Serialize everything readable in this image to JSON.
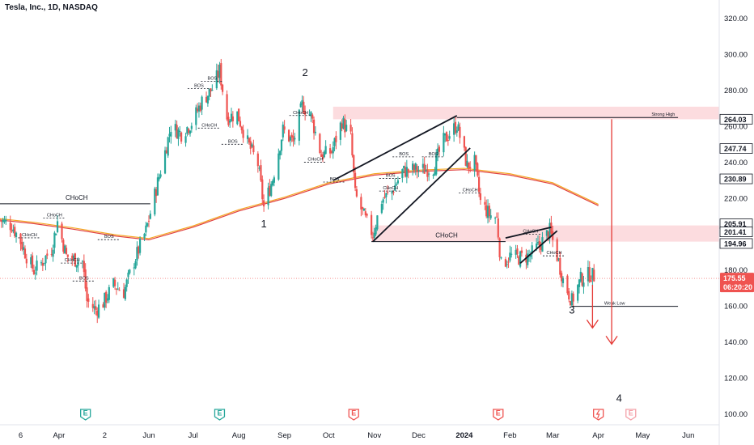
{
  "header": {
    "title": "Tesla, Inc., 1D, NASDAQ"
  },
  "colors": {
    "up": "#26a69a",
    "down": "#ef5350",
    "ma_orange": "#f5a623",
    "ma_red": "#e04040",
    "zone": "#fbd0d4",
    "arrow": "#e53935",
    "price_badge": "#ef5350"
  },
  "chart_data": {
    "type": "candlestick",
    "title": "Tesla, Inc., 1D, NASDAQ",
    "ylim": [
      96,
      324
    ],
    "y_ticks": [
      100,
      120,
      140,
      160,
      180,
      200,
      220,
      240,
      260,
      280,
      300,
      320
    ],
    "y_tick_labels": [
      "100.00",
      "120.00",
      "140.00",
      "160.00",
      "180.00",
      "200.00",
      "220.00",
      "240.00",
      "260.00",
      "280.00",
      "300.00",
      "320.00"
    ],
    "x_ticks": [
      {
        "label": "6",
        "date": "2023-03-06"
      },
      {
        "label": "Apr",
        "date": "2023-04-01"
      },
      {
        "label": "2",
        "date": "2023-05-02"
      },
      {
        "label": "Jun",
        "date": "2023-06-01"
      },
      {
        "label": "Jul",
        "date": "2023-07-01"
      },
      {
        "label": "Aug",
        "date": "2023-08-01"
      },
      {
        "label": "Sep",
        "date": "2023-09-01"
      },
      {
        "label": "Oct",
        "date": "2023-10-01"
      },
      {
        "label": "Nov",
        "date": "2023-11-01"
      },
      {
        "label": "Dec",
        "date": "2023-12-01"
      },
      {
        "label": "2024",
        "date": "2024-01-01",
        "bold": true
      },
      {
        "label": "Feb",
        "date": "2024-02-01"
      },
      {
        "label": "Mar",
        "date": "2024-03-01"
      },
      {
        "label": "Apr",
        "date": "2024-04-01"
      },
      {
        "label": "May",
        "date": "2024-05-01"
      },
      {
        "label": "Jun",
        "date": "2024-06-01"
      }
    ],
    "price_series_close": [
      {
        "date": "2023-02-20",
        "price": 208
      },
      {
        "date": "2023-02-28",
        "price": 205
      },
      {
        "date": "2023-03-06",
        "price": 196
      },
      {
        "date": "2023-03-10",
        "price": 188
      },
      {
        "date": "2023-03-15",
        "price": 180
      },
      {
        "date": "2023-03-20",
        "price": 184
      },
      {
        "date": "2023-03-27",
        "price": 192
      },
      {
        "date": "2023-03-31",
        "price": 207
      },
      {
        "date": "2023-04-06",
        "price": 188
      },
      {
        "date": "2023-04-12",
        "price": 186
      },
      {
        "date": "2023-04-17",
        "price": 185
      },
      {
        "date": "2023-04-20",
        "price": 163
      },
      {
        "date": "2023-04-26",
        "price": 158
      },
      {
        "date": "2023-05-01",
        "price": 162
      },
      {
        "date": "2023-05-08",
        "price": 172
      },
      {
        "date": "2023-05-15",
        "price": 168
      },
      {
        "date": "2023-05-22",
        "price": 185
      },
      {
        "date": "2023-05-30",
        "price": 202
      },
      {
        "date": "2023-06-05",
        "price": 222
      },
      {
        "date": "2023-06-12",
        "price": 246
      },
      {
        "date": "2023-06-16",
        "price": 260
      },
      {
        "date": "2023-06-23",
        "price": 256
      },
      {
        "date": "2023-06-30",
        "price": 262
      },
      {
        "date": "2023-07-07",
        "price": 274
      },
      {
        "date": "2023-07-14",
        "price": 281
      },
      {
        "date": "2023-07-19",
        "price": 291
      },
      {
        "date": "2023-07-24",
        "price": 265
      },
      {
        "date": "2023-07-31",
        "price": 267
      },
      {
        "date": "2023-08-07",
        "price": 251
      },
      {
        "date": "2023-08-14",
        "price": 239
      },
      {
        "date": "2023-08-18",
        "price": 215
      },
      {
        "date": "2023-08-24",
        "price": 231
      },
      {
        "date": "2023-08-31",
        "price": 258
      },
      {
        "date": "2023-09-07",
        "price": 251
      },
      {
        "date": "2023-09-13",
        "price": 272
      },
      {
        "date": "2023-09-19",
        "price": 266
      },
      {
        "date": "2023-09-26",
        "price": 244
      },
      {
        "date": "2023-10-03",
        "price": 246
      },
      {
        "date": "2023-10-10",
        "price": 263
      },
      {
        "date": "2023-10-16",
        "price": 254
      },
      {
        "date": "2023-10-19",
        "price": 222
      },
      {
        "date": "2023-10-26",
        "price": 208
      },
      {
        "date": "2023-10-31",
        "price": 200
      },
      {
        "date": "2023-11-06",
        "price": 219
      },
      {
        "date": "2023-11-13",
        "price": 224
      },
      {
        "date": "2023-11-20",
        "price": 235
      },
      {
        "date": "2023-11-27",
        "price": 236
      },
      {
        "date": "2023-12-04",
        "price": 236
      },
      {
        "date": "2023-12-11",
        "price": 237
      },
      {
        "date": "2023-12-18",
        "price": 252
      },
      {
        "date": "2023-12-27",
        "price": 261
      },
      {
        "date": "2024-01-03",
        "price": 238
      },
      {
        "date": "2024-01-08",
        "price": 240
      },
      {
        "date": "2024-01-12",
        "price": 218
      },
      {
        "date": "2024-01-18",
        "price": 211
      },
      {
        "date": "2024-01-23",
        "price": 209
      },
      {
        "date": "2024-01-26",
        "price": 183
      },
      {
        "date": "2024-02-01",
        "price": 188
      },
      {
        "date": "2024-02-07",
        "price": 187
      },
      {
        "date": "2024-02-14",
        "price": 188
      },
      {
        "date": "2024-02-21",
        "price": 194
      },
      {
        "date": "2024-02-28",
        "price": 202
      },
      {
        "date": "2024-03-04",
        "price": 188
      },
      {
        "date": "2024-03-08",
        "price": 175
      },
      {
        "date": "2024-03-14",
        "price": 163
      },
      {
        "date": "2024-03-20",
        "price": 175
      },
      {
        "date": "2024-03-26",
        "price": 178
      },
      {
        "date": "2024-04-01",
        "price": 175.55
      }
    ],
    "moving_averages": [
      {
        "name": "",
        "points": [
          {
            "date": "2023-02-20",
            "price": 208
          },
          {
            "date": "2023-03-15",
            "price": 206
          },
          {
            "date": "2023-04-10",
            "price": 203
          },
          {
            "date": "2023-05-10",
            "price": 199
          },
          {
            "date": "2023-06-01",
            "price": 197
          },
          {
            "date": "2023-07-01",
            "price": 204
          },
          {
            "date": "2023-08-01",
            "price": 213
          },
          {
            "date": "2023-09-01",
            "price": 220
          },
          {
            "date": "2023-10-01",
            "price": 228
          },
          {
            "date": "2023-11-01",
            "price": 233
          },
          {
            "date": "2023-12-01",
            "price": 235
          },
          {
            "date": "2024-01-01",
            "price": 236
          },
          {
            "date": "2024-02-01",
            "price": 233
          },
          {
            "date": "2024-03-01",
            "price": 228
          },
          {
            "date": "2024-04-01",
            "price": 216
          }
        ]
      }
    ],
    "price_labels": [
      {
        "label": "264.03",
        "price": 264.03,
        "color": "#131722"
      },
      {
        "label": "247.74",
        "price": 247.74,
        "color": "#131722"
      },
      {
        "label": "230.89",
        "price": 230.89,
        "color": "#131722"
      },
      {
        "label": "205.91",
        "price": 205.91,
        "color": "#131722"
      },
      {
        "label": "201.41",
        "price": 201.41,
        "color": "#131722"
      },
      {
        "label": "194.96",
        "price": 194.96,
        "color": "#131722"
      }
    ],
    "current_price": {
      "label": "175.55",
      "countdown": "06:20:20",
      "price": 175.55
    },
    "zones": [
      {
        "from_date": "2023-10-04",
        "to_date": "2024-05-25",
        "low": 264,
        "high": 271
      },
      {
        "from_date": "2023-10-30",
        "to_date": "2024-05-25",
        "low": 196,
        "high": 205
      }
    ],
    "levels": [
      {
        "label": "CHoCH",
        "price": 217,
        "from_date": "2023-02-20",
        "to_date": "2023-06-02",
        "label_date": "2023-04-13"
      },
      {
        "label": "CHoCH",
        "price": 196,
        "from_date": "2023-10-30",
        "to_date": "2024-01-29",
        "label_date": "2023-12-20"
      },
      {
        "label": "Strong High",
        "price": 265,
        "from_date": "2023-12-27",
        "to_date": "2024-05-25",
        "label_date": "2024-05-15"
      },
      {
        "label": "Weak Low",
        "price": 160,
        "from_date": "2024-03-14",
        "to_date": "2024-05-25",
        "label_date": "2024-04-12"
      }
    ],
    "wave_labels": [
      {
        "label": "1",
        "date": "2023-08-18",
        "price": 204
      },
      {
        "label": "2",
        "date": "2023-09-15",
        "price": 288
      },
      {
        "label": "3",
        "date": "2024-03-14",
        "price": 156
      },
      {
        "label": "4",
        "date": "2024-04-15",
        "price": 107
      }
    ],
    "structure_labels": [
      {
        "label": "BOS",
        "date": "2023-07-05",
        "price": 282
      },
      {
        "label": "BOS",
        "date": "2023-07-14",
        "price": 286
      },
      {
        "label": "CHoCH",
        "date": "2023-07-12",
        "price": 260
      },
      {
        "label": "BOS",
        "date": "2023-07-28",
        "price": 251
      },
      {
        "label": "CHoCH",
        "date": "2023-09-12",
        "price": 267
      },
      {
        "label": "CHoCH",
        "date": "2023-09-22",
        "price": 241
      },
      {
        "label": "BOS",
        "date": "2023-10-05",
        "price": 230
      },
      {
        "label": "CHoCH",
        "date": "2023-03-29",
        "price": 210
      },
      {
        "label": "CHoCH",
        "date": "2023-03-12",
        "price": 199
      },
      {
        "label": "CHoCH",
        "date": "2023-04-10",
        "price": 185
      },
      {
        "label": "BOS",
        "date": "2023-05-05",
        "price": 198
      },
      {
        "label": "BOS",
        "date": "2023-04-18",
        "price": 175
      },
      {
        "label": "CHoCH",
        "date": "2023-11-12",
        "price": 225
      },
      {
        "label": "BOS",
        "date": "2023-11-21",
        "price": 244
      },
      {
        "label": "BOS",
        "date": "2023-12-11",
        "price": 244
      },
      {
        "label": "BOS",
        "date": "2023-11-12",
        "price": 232
      },
      {
        "label": "CHoCH",
        "date": "2024-01-05",
        "price": 224
      },
      {
        "label": "CHoCH",
        "date": "2024-02-15",
        "price": 201
      },
      {
        "label": "CHoCH",
        "date": "2024-03-02",
        "price": 189
      }
    ],
    "trendlines": [
      {
        "from": {
          "date": "2023-10-04",
          "price": 230
        },
        "to": {
          "date": "2023-12-27",
          "price": 266
        }
      },
      {
        "from": {
          "date": "2023-10-31",
          "price": 196
        },
        "to": {
          "date": "2024-01-05",
          "price": 248
        }
      },
      {
        "from": {
          "date": "2024-01-29",
          "price": 198
        },
        "to": {
          "date": "2024-02-29",
          "price": 204
        }
      },
      {
        "from": {
          "date": "2024-02-08",
          "price": 184
        },
        "to": {
          "date": "2024-03-04",
          "price": 202
        }
      }
    ],
    "projection_arrows": [
      {
        "date": "2024-04-10",
        "from": 264,
        "to": 139
      },
      {
        "date": "2024-03-28",
        "from": 172,
        "to": 148
      }
    ],
    "events": [
      {
        "type": "earnings",
        "label": "E",
        "date": "2023-04-19",
        "color": "#26a69a"
      },
      {
        "type": "earnings",
        "label": "E",
        "date": "2023-07-19",
        "color": "#26a69a"
      },
      {
        "type": "earnings",
        "label": "E",
        "date": "2023-10-18",
        "color": "#ef5350"
      },
      {
        "type": "earnings",
        "label": "E",
        "date": "2024-01-24",
        "color": "#ef5350"
      },
      {
        "type": "dividend",
        "label": "",
        "date": "2024-04-01",
        "color": "#ef5350"
      },
      {
        "type": "earnings",
        "label": "E",
        "date": "2024-04-23",
        "color": "#f4a0a8"
      }
    ]
  }
}
